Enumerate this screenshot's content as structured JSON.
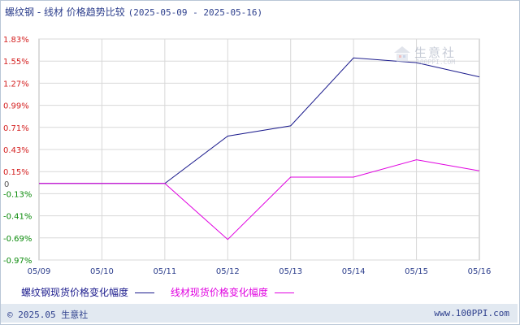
{
  "title": {
    "main": "螺纹钢 - 线材 价格趋势比较",
    "range": "(2025-05-09 - 2025-05-16)"
  },
  "watermark": {
    "text": "生意社",
    "sub": "100PPI.COM"
  },
  "footer": {
    "copyright": "© 2025.05 生意社",
    "site": "www.100PPI.com"
  },
  "colors": {
    "series1": "#1a1a8c",
    "series2": "#e000e0",
    "positive_tick": "#d42020",
    "negative_tick": "#0a8a0a",
    "zero_tick": "#555555",
    "grid": "#d8d8d8"
  },
  "chart_data": {
    "type": "line",
    "x": [
      "05/09",
      "05/10",
      "05/11",
      "05/12",
      "05/13",
      "05/14",
      "05/15",
      "05/16"
    ],
    "yticks": [
      "1.83%",
      "1.55%",
      "1.27%",
      "0.99%",
      "0.71%",
      "0.43%",
      "0.15%",
      "0",
      "-0.13%",
      "-0.41%",
      "-0.69%",
      "-0.97%"
    ],
    "ytick_values": [
      1.83,
      1.55,
      1.27,
      0.99,
      0.71,
      0.43,
      0.15,
      0,
      -0.13,
      -0.41,
      -0.69,
      -0.97
    ],
    "ylim": [
      -0.97,
      1.83
    ],
    "grid": true,
    "legend_position": "bottom",
    "series": [
      {
        "name": "螺纹钢现货价格变化幅度",
        "color": "#1a1a8c",
        "values": [
          0,
          0,
          0,
          0.6,
          0.73,
          1.59,
          1.53,
          1.35
        ]
      },
      {
        "name": "线材现货价格变化幅度",
        "color": "#e000e0",
        "values": [
          0,
          0,
          0,
          -0.71,
          0.08,
          0.08,
          0.3,
          0.16
        ]
      }
    ]
  }
}
